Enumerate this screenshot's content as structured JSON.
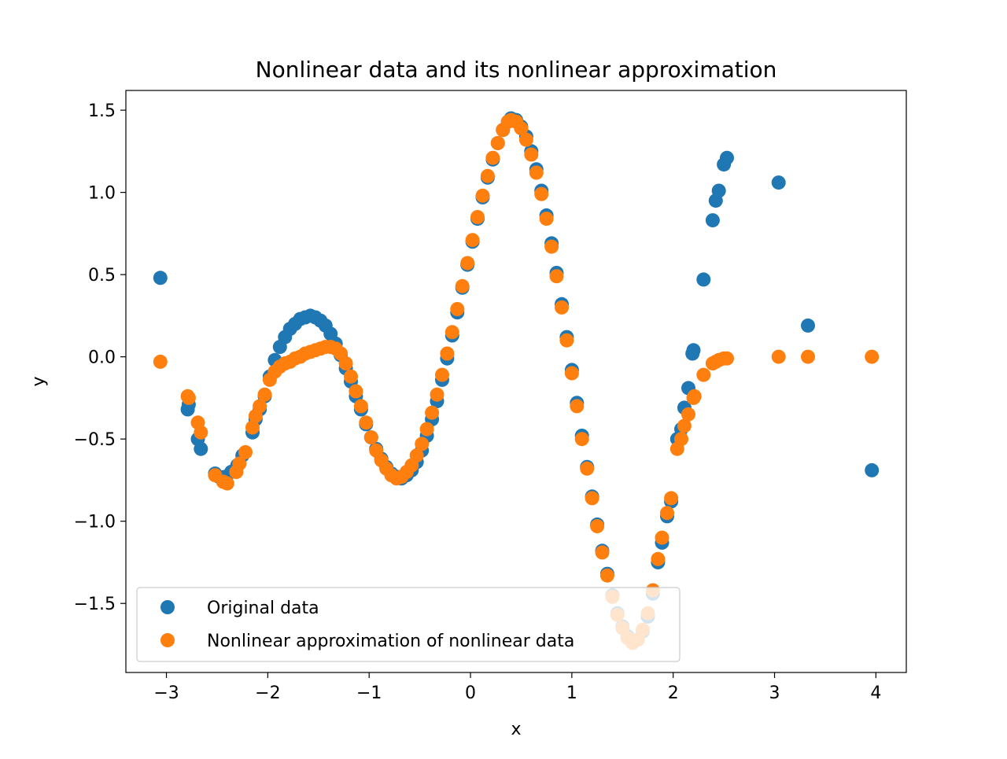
{
  "chart_data": {
    "type": "scatter",
    "title": "Nonlinear data and its nonlinear approximation",
    "xlabel": "x",
    "ylabel": "y",
    "xlim": [
      -3.4,
      4.3
    ],
    "ylim": [
      -1.92,
      1.62
    ],
    "x_ticks": [
      {
        "value": -3,
        "label": "−3"
      },
      {
        "value": -2,
        "label": "−2"
      },
      {
        "value": -1,
        "label": "−1"
      },
      {
        "value": 0,
        "label": "0"
      },
      {
        "value": 1,
        "label": "1"
      },
      {
        "value": 2,
        "label": "2"
      },
      {
        "value": 3,
        "label": "3"
      },
      {
        "value": 4,
        "label": "4"
      }
    ],
    "y_ticks": [
      {
        "value": -1.5,
        "label": "−1.5"
      },
      {
        "value": -1.0,
        "label": "−1.0"
      },
      {
        "value": -0.5,
        "label": "−0.5"
      },
      {
        "value": 0.0,
        "label": "0.0"
      },
      {
        "value": 0.5,
        "label": "0.5"
      },
      {
        "value": 1.0,
        "label": "1.0"
      },
      {
        "value": 1.5,
        "label": "1.5"
      }
    ],
    "grid": false,
    "legend_placement": "lower-left",
    "series": [
      {
        "name": "Original data",
        "color": "#1f77b4",
        "points": [
          [
            -3.06,
            0.48
          ],
          [
            -2.79,
            -0.32
          ],
          [
            -2.78,
            -0.29
          ],
          [
            -2.69,
            -0.5
          ],
          [
            -2.66,
            -0.56
          ],
          [
            -2.52,
            -0.71
          ],
          [
            -2.48,
            -0.73
          ],
          [
            -2.42,
            -0.73
          ],
          [
            -2.36,
            -0.7
          ],
          [
            -2.3,
            -0.66
          ],
          [
            -2.25,
            -0.6
          ],
          [
            -2.15,
            -0.46
          ],
          [
            -2.12,
            -0.38
          ],
          [
            -2.08,
            -0.32
          ],
          [
            -2.03,
            -0.24
          ],
          [
            -1.98,
            -0.12
          ],
          [
            -1.93,
            -0.02
          ],
          [
            -1.88,
            0.06
          ],
          [
            -1.83,
            0.12
          ],
          [
            -1.78,
            0.17
          ],
          [
            -1.73,
            0.2
          ],
          [
            -1.68,
            0.23
          ],
          [
            -1.63,
            0.24
          ],
          [
            -1.58,
            0.25
          ],
          [
            -1.53,
            0.24
          ],
          [
            -1.48,
            0.22
          ],
          [
            -1.43,
            0.19
          ],
          [
            -1.38,
            0.14
          ],
          [
            -1.33,
            0.08
          ],
          [
            -1.28,
            0.01
          ],
          [
            -1.23,
            -0.07
          ],
          [
            -1.18,
            -0.15
          ],
          [
            -1.13,
            -0.24
          ],
          [
            -1.08,
            -0.32
          ],
          [
            -1.03,
            -0.41
          ],
          [
            -0.98,
            -0.49
          ],
          [
            -0.93,
            -0.56
          ],
          [
            -0.88,
            -0.62
          ],
          [
            -0.83,
            -0.67
          ],
          [
            -0.78,
            -0.71
          ],
          [
            -0.73,
            -0.73
          ],
          [
            -0.68,
            -0.74
          ],
          [
            -0.63,
            -0.72
          ],
          [
            -0.58,
            -0.69
          ],
          [
            -0.53,
            -0.64
          ],
          [
            -0.48,
            -0.57
          ],
          [
            -0.43,
            -0.48
          ],
          [
            -0.38,
            -0.38
          ],
          [
            -0.33,
            -0.27
          ],
          [
            -0.28,
            -0.14
          ],
          [
            -0.23,
            -0.01
          ],
          [
            -0.18,
            0.13
          ],
          [
            -0.13,
            0.27
          ],
          [
            -0.08,
            0.42
          ],
          [
            -0.03,
            0.56
          ],
          [
            0.02,
            0.7
          ],
          [
            0.07,
            0.84
          ],
          [
            0.12,
            0.97
          ],
          [
            0.17,
            1.09
          ],
          [
            0.22,
            1.2
          ],
          [
            0.27,
            1.3
          ],
          [
            0.32,
            1.38
          ],
          [
            0.37,
            1.43
          ],
          [
            0.4,
            1.45
          ],
          [
            0.45,
            1.44
          ],
          [
            0.5,
            1.4
          ],
          [
            0.55,
            1.34
          ],
          [
            0.6,
            1.25
          ],
          [
            0.65,
            1.14
          ],
          [
            0.7,
            1.01
          ],
          [
            0.75,
            0.86
          ],
          [
            0.8,
            0.69
          ],
          [
            0.85,
            0.51
          ],
          [
            0.9,
            0.32
          ],
          [
            0.95,
            0.12
          ],
          [
            1.0,
            -0.08
          ],
          [
            1.05,
            -0.28
          ],
          [
            1.1,
            -0.48
          ],
          [
            1.15,
            -0.67
          ],
          [
            1.2,
            -0.85
          ],
          [
            1.25,
            -1.02
          ],
          [
            1.3,
            -1.18
          ],
          [
            1.35,
            -1.32
          ],
          [
            1.4,
            -1.45
          ],
          [
            1.45,
            -1.56
          ],
          [
            1.5,
            -1.64
          ],
          [
            1.55,
            -1.7
          ],
          [
            1.6,
            -1.73
          ],
          [
            1.65,
            -1.72
          ],
          [
            1.7,
            -1.67
          ],
          [
            1.75,
            -1.58
          ],
          [
            1.8,
            -1.44
          ],
          [
            1.85,
            -1.25
          ],
          [
            1.89,
            -1.13
          ],
          [
            1.94,
            -0.97
          ],
          [
            1.98,
            -0.88
          ],
          [
            2.04,
            -0.5
          ],
          [
            2.08,
            -0.44
          ],
          [
            2.11,
            -0.31
          ],
          [
            2.15,
            -0.19
          ],
          [
            2.19,
            0.02
          ],
          [
            2.2,
            0.04
          ],
          [
            2.3,
            0.47
          ],
          [
            2.39,
            0.83
          ],
          [
            2.42,
            0.95
          ],
          [
            2.45,
            1.01
          ],
          [
            2.5,
            1.17
          ],
          [
            2.53,
            1.21
          ],
          [
            3.04,
            1.06
          ],
          [
            3.33,
            0.19
          ],
          [
            3.96,
            -0.69
          ]
        ]
      },
      {
        "name": "Nonlinear approximation of nonlinear data",
        "color": "#ff7f0e",
        "points": [
          [
            -3.06,
            -0.03
          ],
          [
            -2.79,
            -0.24
          ],
          [
            -2.78,
            -0.25
          ],
          [
            -2.69,
            -0.4
          ],
          [
            -2.66,
            -0.46
          ],
          [
            -2.52,
            -0.72
          ],
          [
            -2.44,
            -0.76
          ],
          [
            -2.4,
            -0.77
          ],
          [
            -2.31,
            -0.7
          ],
          [
            -2.28,
            -0.65
          ],
          [
            -2.22,
            -0.58
          ],
          [
            -2.15,
            -0.43
          ],
          [
            -2.12,
            -0.36
          ],
          [
            -2.08,
            -0.3
          ],
          [
            -2.03,
            -0.23
          ],
          [
            -1.98,
            -0.14
          ],
          [
            -1.93,
            -0.09
          ],
          [
            -1.88,
            -0.06
          ],
          [
            -1.83,
            -0.04
          ],
          [
            -1.78,
            -0.03
          ],
          [
            -1.73,
            -0.01
          ],
          [
            -1.68,
            0.0
          ],
          [
            -1.63,
            0.02
          ],
          [
            -1.58,
            0.03
          ],
          [
            -1.53,
            0.04
          ],
          [
            -1.48,
            0.05
          ],
          [
            -1.43,
            0.06
          ],
          [
            -1.38,
            0.06
          ],
          [
            -1.33,
            0.05
          ],
          [
            -1.28,
            0.02
          ],
          [
            -1.23,
            -0.04
          ],
          [
            -1.18,
            -0.12
          ],
          [
            -1.13,
            -0.21
          ],
          [
            -1.08,
            -0.3
          ],
          [
            -1.03,
            -0.4
          ],
          [
            -0.98,
            -0.49
          ],
          [
            -0.93,
            -0.57
          ],
          [
            -0.88,
            -0.63
          ],
          [
            -0.83,
            -0.68
          ],
          [
            -0.78,
            -0.72
          ],
          [
            -0.73,
            -0.74
          ],
          [
            -0.68,
            -0.73
          ],
          [
            -0.63,
            -0.7
          ],
          [
            -0.58,
            -0.66
          ],
          [
            -0.53,
            -0.6
          ],
          [
            -0.48,
            -0.53
          ],
          [
            -0.43,
            -0.44
          ],
          [
            -0.38,
            -0.34
          ],
          [
            -0.33,
            -0.23
          ],
          [
            -0.28,
            -0.11
          ],
          [
            -0.23,
            0.02
          ],
          [
            -0.18,
            0.15
          ],
          [
            -0.13,
            0.29
          ],
          [
            -0.08,
            0.43
          ],
          [
            -0.03,
            0.57
          ],
          [
            0.02,
            0.71
          ],
          [
            0.07,
            0.85
          ],
          [
            0.12,
            0.98
          ],
          [
            0.17,
            1.1
          ],
          [
            0.22,
            1.21
          ],
          [
            0.27,
            1.3
          ],
          [
            0.32,
            1.38
          ],
          [
            0.37,
            1.43
          ],
          [
            0.4,
            1.44
          ],
          [
            0.45,
            1.43
          ],
          [
            0.5,
            1.39
          ],
          [
            0.55,
            1.32
          ],
          [
            0.6,
            1.23
          ],
          [
            0.65,
            1.12
          ],
          [
            0.7,
            0.99
          ],
          [
            0.75,
            0.84
          ],
          [
            0.8,
            0.67
          ],
          [
            0.85,
            0.49
          ],
          [
            0.9,
            0.3
          ],
          [
            0.95,
            0.1
          ],
          [
            1.0,
            -0.1
          ],
          [
            1.05,
            -0.3
          ],
          [
            1.1,
            -0.5
          ],
          [
            1.15,
            -0.68
          ],
          [
            1.2,
            -0.86
          ],
          [
            1.25,
            -1.03
          ],
          [
            1.3,
            -1.19
          ],
          [
            1.35,
            -1.33
          ],
          [
            1.4,
            -1.46
          ],
          [
            1.45,
            -1.57
          ],
          [
            1.5,
            -1.65
          ],
          [
            1.55,
            -1.71
          ],
          [
            1.6,
            -1.74
          ],
          [
            1.65,
            -1.72
          ],
          [
            1.7,
            -1.66
          ],
          [
            1.75,
            -1.56
          ],
          [
            1.8,
            -1.42
          ],
          [
            1.85,
            -1.23
          ],
          [
            1.89,
            -1.1
          ],
          [
            1.94,
            -0.95
          ],
          [
            1.98,
            -0.86
          ],
          [
            2.04,
            -0.56
          ],
          [
            2.08,
            -0.5
          ],
          [
            2.11,
            -0.42
          ],
          [
            2.15,
            -0.35
          ],
          [
            2.2,
            -0.25
          ],
          [
            2.21,
            -0.24
          ],
          [
            2.3,
            -0.11
          ],
          [
            2.39,
            -0.04
          ],
          [
            2.42,
            -0.03
          ],
          [
            2.45,
            -0.02
          ],
          [
            2.5,
            -0.01
          ],
          [
            2.53,
            -0.01
          ],
          [
            3.04,
            0.0
          ],
          [
            3.33,
            0.0
          ],
          [
            3.96,
            0.0
          ]
        ]
      }
    ]
  }
}
